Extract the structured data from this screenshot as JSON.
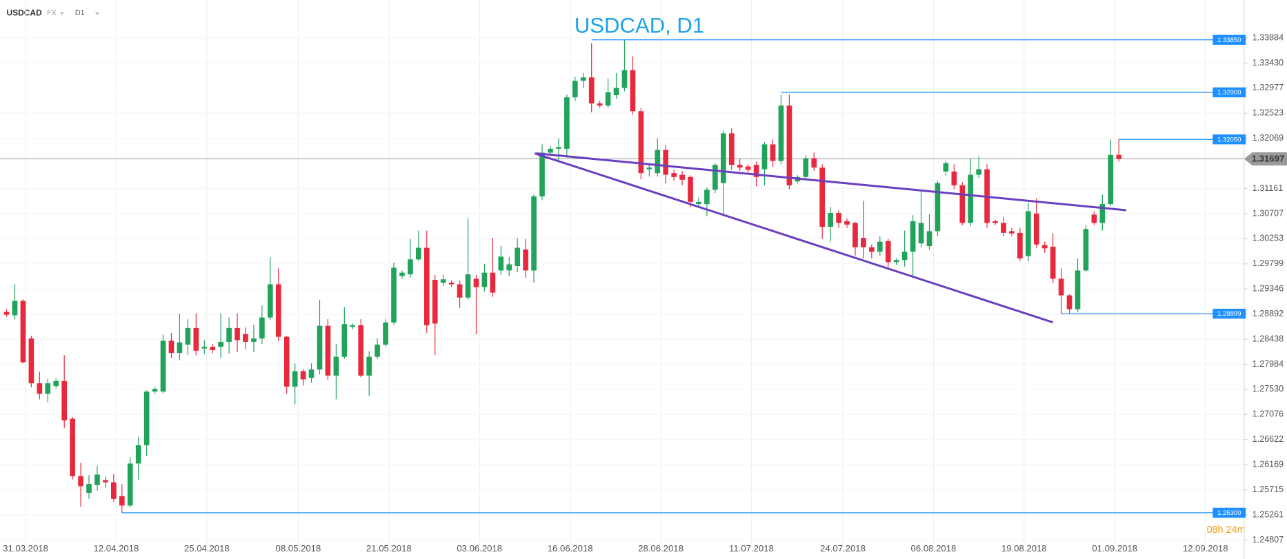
{
  "header": {
    "symbol": "USDCAD",
    "market": "FX",
    "interval": "D1"
  },
  "chart_data": {
    "type": "candlestick",
    "title": "USDCAD, D1",
    "up_color": "#22a35b",
    "down_color": "#e8283c",
    "open": [
      1.2893,
      1.2887,
      1.2913,
      1.2845,
      1.2764,
      1.2745,
      1.2759,
      1.2768,
      1.27,
      1.2596,
      1.2566,
      1.258,
      1.2589,
      1.2585,
      1.256,
      1.2543,
      1.2619,
      1.2652,
      1.2749,
      1.2749,
      1.2841,
      1.2819,
      1.2834,
      1.2864,
      1.2827,
      1.283,
      1.283,
      1.2839,
      1.2864,
      1.2853,
      1.2839,
      1.2845,
      1.2883,
      1.2943,
      1.2848,
      1.2758,
      1.2786,
      1.2774,
      1.2789,
      1.2868,
      1.2778,
      1.2812,
      1.2866,
      1.2869,
      1.2778,
      1.2812,
      1.2834,
      1.2874,
      1.2958,
      1.2961,
      1.2988,
      1.3009,
      1.2951,
      1.2946,
      1.2946,
      1.2943,
      1.2919,
      1.2953,
      1.2938,
      1.2964,
      1.2968,
      1.2968,
      1.2976,
      1.3006,
      1.2968,
      1.3102,
      1.3181,
      1.3188,
      1.3188,
      1.3281,
      1.3311,
      1.3317,
      1.327,
      1.3266,
      1.3285,
      1.3298,
      1.333,
      1.3256,
      1.3151,
      1.3144,
      1.3186,
      1.3144,
      1.3141,
      1.3137,
      1.3088,
      1.3088,
      1.3114,
      1.3126,
      1.3216,
      1.3159,
      1.3156,
      1.3159,
      1.3151,
      1.3196,
      1.3166,
      1.3266,
      1.3129,
      1.3137,
      1.3171,
      1.3154,
      1.3047,
      1.3072,
      1.3057,
      1.3054,
      1.3027,
      1.301,
      1.3002,
      1.3021,
      1.2983,
      1.2987,
      1.3002,
      1.3017,
      1.3012,
      1.3039,
      1.3147,
      1.3147,
      1.3122,
      1.3054,
      1.3141,
      1.3151,
      1.3057,
      1.3054,
      1.3039,
      1.3036,
      1.2994,
      1.3071,
      1.3014,
      1.3011,
      1.2953,
      1.2923,
      1.2898,
      1.2968,
      1.3069,
      1.3054,
      1.3088,
      1.3177
    ],
    "high": [
      1.2898,
      1.2943,
      1.2916,
      1.285,
      1.2785,
      1.2772,
      1.2773,
      1.2815,
      1.2703,
      1.262,
      1.2598,
      1.2615,
      1.2595,
      1.26,
      1.2582,
      1.263,
      1.2667,
      1.2751,
      1.2758,
      1.2852,
      1.2855,
      1.289,
      1.288,
      1.289,
      1.2842,
      1.2835,
      1.289,
      1.2883,
      1.289,
      1.2865,
      1.287,
      1.2905,
      1.2992,
      1.2972,
      1.285,
      1.28,
      1.279,
      1.28,
      1.2915,
      1.288,
      1.2835,
      1.2902,
      1.2872,
      1.288,
      1.2822,
      1.2845,
      1.288,
      1.2982,
      1.2968,
      1.3025,
      1.304,
      1.304,
      1.296,
      1.296,
      1.295,
      1.295,
      1.3062,
      1.296,
      1.298,
      1.3027,
      1.3012,
      1.2992,
      1.3027,
      1.3025,
      1.3105,
      1.3196,
      1.3193,
      1.3207,
      1.3286,
      1.3318,
      1.3325,
      1.3379,
      1.3275,
      1.3315,
      1.3325,
      1.3385,
      1.3355,
      1.3262,
      1.316,
      1.3207,
      1.3195,
      1.315,
      1.3148,
      1.314,
      1.31,
      1.3118,
      1.3162,
      1.3221,
      1.3225,
      1.317,
      1.316,
      1.3165,
      1.32,
      1.3205,
      1.3286,
      1.3286,
      1.314,
      1.3176,
      1.3181,
      1.316,
      1.3083,
      1.3077,
      1.3062,
      1.3056,
      1.3094,
      1.3015,
      1.303,
      1.3025,
      1.299,
      1.304,
      1.3068,
      1.3114,
      1.307,
      1.313,
      1.3166,
      1.316,
      1.3128,
      1.3171,
      1.3174,
      1.316,
      1.306,
      1.3065,
      1.3045,
      1.3045,
      1.309,
      1.3098,
      1.302,
      1.3035,
      1.2972,
      1.2925,
      1.299,
      1.305,
      1.3075,
      1.3105,
      1.3205,
      1.3205
    ],
    "low": [
      1.2884,
      1.288,
      1.28,
      1.2757,
      1.2735,
      1.273,
      1.2755,
      1.2683,
      1.259,
      1.2541,
      1.2555,
      1.257,
      1.2575,
      1.255,
      1.253,
      1.254,
      1.259,
      1.2632,
      1.2745,
      1.2746,
      1.281,
      1.2806,
      1.2815,
      1.2815,
      1.2817,
      1.2818,
      1.281,
      1.2818,
      1.282,
      1.2825,
      1.282,
      1.2835,
      1.2878,
      1.284,
      1.2745,
      1.2726,
      1.276,
      1.2765,
      1.278,
      1.277,
      1.2735,
      1.2808,
      1.2862,
      1.2775,
      1.2741,
      1.2808,
      1.283,
      1.287,
      1.2953,
      1.2955,
      1.2985,
      1.2855,
      1.2815,
      1.294,
      1.2938,
      1.29,
      1.2915,
      1.2853,
      1.293,
      1.292,
      1.296,
      1.2958,
      1.2965,
      1.2955,
      1.2946,
      1.3095,
      1.3176,
      1.3167,
      1.3172,
      1.3274,
      1.3298,
      1.3254,
      1.3262,
      1.3262,
      1.3278,
      1.3292,
      1.325,
      1.3133,
      1.3138,
      1.3138,
      1.3125,
      1.313,
      1.3122,
      1.3083,
      1.3082,
      1.3066,
      1.3108,
      1.3066,
      1.315,
      1.3148,
      1.3145,
      1.312,
      1.3122,
      1.3155,
      1.316,
      1.3115,
      1.3125,
      1.3131,
      1.3148,
      1.3025,
      1.302,
      1.3045,
      1.3045,
      1.2995,
      1.299,
      1.299,
      1.2995,
      1.297,
      1.2978,
      1.2975,
      1.2957,
      1.301,
      1.3005,
      1.303,
      1.314,
      1.3115,
      1.305,
      1.3048,
      1.3135,
      1.3045,
      1.305,
      1.303,
      1.303,
      1.2985,
      1.2985,
      1.3008,
      1.3,
      1.2945,
      1.289,
      1.289,
      1.2893,
      1.2965,
      1.305,
      1.304,
      1.3085,
      1.3165
    ],
    "close": [
      1.2888,
      1.2913,
      1.2802,
      1.2764,
      1.2745,
      1.2764,
      1.2768,
      1.2697,
      1.2596,
      1.2578,
      1.2582,
      1.2599,
      1.2585,
      1.2555,
      1.2543,
      1.2619,
      1.2652,
      1.2749,
      1.2754,
      1.2841,
      1.2819,
      1.2838,
      1.2864,
      1.2823,
      1.283,
      1.2824,
      1.2839,
      1.2864,
      1.2842,
      1.2839,
      1.2845,
      1.2883,
      1.2943,
      1.2848,
      1.2758,
      1.2786,
      1.2771,
      1.2789,
      1.2868,
      1.2778,
      1.2812,
      1.2871,
      1.2869,
      1.2778,
      1.2812,
      1.2834,
      1.2874,
      1.2973,
      1.2964,
      1.2988,
      1.3009,
      1.2869,
      1.2872,
      1.2952,
      1.2943,
      1.2919,
      1.2961,
      1.2938,
      1.2964,
      1.2928,
      1.2993,
      1.2979,
      1.3009,
      1.2968,
      1.3102,
      1.3181,
      1.3188,
      1.3191,
      1.3281,
      1.3311,
      1.3317,
      1.327,
      1.3266,
      1.329,
      1.3298,
      1.333,
      1.3256,
      1.3144,
      1.3154,
      1.3186,
      1.3141,
      1.3137,
      1.3132,
      1.3092,
      1.3092,
      1.3114,
      1.3159,
      1.3216,
      1.3159,
      1.3154,
      1.315,
      1.3137,
      1.3196,
      1.3166,
      1.3266,
      1.3122,
      1.3137,
      1.3171,
      1.3154,
      1.3047,
      1.3072,
      1.3054,
      1.3051,
      1.301,
      1.301,
      1.3002,
      1.302,
      1.2983,
      1.2987,
      1.3002,
      1.3057,
      1.3054,
      1.3039,
      1.3126,
      1.3162,
      1.3122,
      1.3054,
      1.3141,
      1.3151,
      1.3054,
      1.3054,
      1.3036,
      1.3035,
      1.299,
      1.3075,
      1.3015,
      1.3008,
      1.2953,
      1.2923,
      1.2898,
      1.2968,
      1.3043,
      1.3054,
      1.3088,
      1.3177,
      1.317
    ],
    "xlim": [
      -0.8,
      150.2
    ],
    "xticks": [
      {
        "value": 2.3,
        "label": "31.03.2018"
      },
      {
        "value": 13.3,
        "label": "12.04.2018"
      },
      {
        "value": 24.3,
        "label": "25.04.2018"
      },
      {
        "value": 35.4,
        "label": "08.05.2018"
      },
      {
        "value": 46.4,
        "label": "21.05.2018"
      },
      {
        "value": 57.4,
        "label": "03.06.2018"
      },
      {
        "value": 68.4,
        "label": "16.06.2018"
      },
      {
        "value": 79.4,
        "label": "28.06.2018"
      },
      {
        "value": 90.4,
        "label": "11.07.2018"
      },
      {
        "value": 101.5,
        "label": "24.07.2018"
      },
      {
        "value": 112.5,
        "label": "06.08.2018"
      },
      {
        "value": 123.5,
        "label": "19.08.2018"
      },
      {
        "value": 134.5,
        "label": "01.09.2018"
      },
      {
        "value": 145.5,
        "label": "12.09.2018"
      }
    ],
    "ylim": [
      1.24732,
      1.3457
    ],
    "yticks": [
      1.33884,
      {
        "value": 1.3343,
        "label": "1.33430"
      },
      1.32977,
      1.32523,
      1.32069,
      1.31161,
      1.30707,
      1.30253,
      1.29799,
      1.29346,
      1.28892,
      1.28438,
      1.27984,
      {
        "value": 1.2753,
        "label": "1.27530"
      },
      1.27076,
      1.26622,
      1.26169,
      1.25715,
      1.25261,
      1.24807
    ],
    "grid": true,
    "last_price": 1.31697,
    "levels": [
      {
        "value": 1.3385,
        "label": "1.33850",
        "from": 71
      },
      {
        "value": 1.329,
        "label": "1.32900",
        "from": 94
      },
      {
        "value": 1.3205,
        "label": "1.32050",
        "from": 135
      },
      {
        "value": 1.28899,
        "label": "1.28899",
        "from": 128
      },
      {
        "value": 1.253,
        "label": "1.25300",
        "from": 14
      }
    ],
    "level_color": "#1e90ff",
    "trendlines": [
      {
        "from": [
          64.3,
          1.31797
        ],
        "to": [
          135.9,
          1.30769
        ]
      },
      {
        "from": [
          64.1,
          1.31797
        ],
        "to": [
          127.0,
          1.28742
        ]
      }
    ],
    "trendline_color": "#6a3fc0",
    "timer": "08h 24m"
  }
}
